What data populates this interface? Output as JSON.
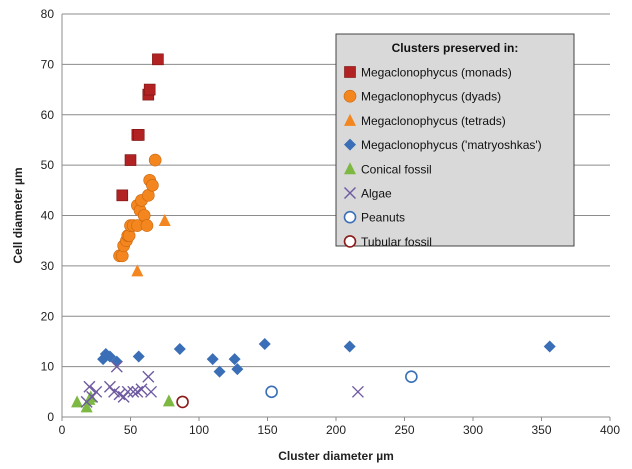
{
  "chart_data": {
    "type": "scatter",
    "xlabel": "Cluster diameter µm",
    "ylabel": "Cell diameter µm",
    "xlim": [
      0,
      400
    ],
    "ylim": [
      0,
      80
    ],
    "xticks": [
      "0",
      "50",
      "100",
      "150",
      "200",
      "250",
      "300",
      "350",
      "400"
    ],
    "yticks": [
      "0",
      "10",
      "20",
      "30",
      "40",
      "50",
      "60",
      "70",
      "80"
    ],
    "grid": "horizontal",
    "legend": {
      "title": "Clusters preserved in:",
      "placement": "top-right"
    },
    "series": [
      {
        "name": "Megaclonophycus (monads)",
        "marker": "square",
        "color": "#b22222",
        "points": [
          [
            44,
            44
          ],
          [
            50,
            51
          ],
          [
            55,
            56
          ],
          [
            56,
            56
          ],
          [
            63,
            64
          ],
          [
            64,
            65
          ],
          [
            70,
            71
          ]
        ]
      },
      {
        "name": "Megaclonophycus (dyads)",
        "marker": "circle",
        "color": "#f4861f",
        "points": [
          [
            42,
            32
          ],
          [
            44,
            32
          ],
          [
            45,
            34
          ],
          [
            47,
            35
          ],
          [
            48,
            36
          ],
          [
            49,
            36
          ],
          [
            50,
            38
          ],
          [
            52,
            38
          ],
          [
            55,
            38
          ],
          [
            55,
            42
          ],
          [
            57,
            41
          ],
          [
            58,
            43
          ],
          [
            60,
            40
          ],
          [
            62,
            38
          ],
          [
            63,
            44
          ],
          [
            64,
            47
          ],
          [
            66,
            46
          ],
          [
            68,
            51
          ]
        ]
      },
      {
        "name": "Megaclonophycus (tetrads)",
        "marker": "triangle",
        "color": "#f4861f",
        "points": [
          [
            55,
            29
          ],
          [
            75,
            39
          ]
        ]
      },
      {
        "name": "Megaclonophycus ('matryoshkas')",
        "marker": "diamond",
        "color": "#3a6fb7",
        "points": [
          [
            30,
            11.5
          ],
          [
            32,
            12.5
          ],
          [
            35,
            12
          ],
          [
            40,
            11
          ],
          [
            56,
            12
          ],
          [
            86,
            13.5
          ],
          [
            110,
            11.5
          ],
          [
            115,
            9
          ],
          [
            126,
            11.5
          ],
          [
            128,
            9.5
          ],
          [
            148,
            14.5
          ],
          [
            210,
            14
          ],
          [
            356,
            14
          ]
        ]
      },
      {
        "name": "Conical fossil",
        "marker": "triangle",
        "color": "#7db843",
        "points": [
          [
            11,
            3
          ],
          [
            18,
            2
          ],
          [
            20,
            3.5
          ],
          [
            21,
            4
          ],
          [
            78,
            3.2
          ]
        ]
      },
      {
        "name": "Algae",
        "marker": "x",
        "color": "#6e5aa0",
        "points": [
          [
            18,
            3
          ],
          [
            20,
            6
          ],
          [
            22,
            4
          ],
          [
            25,
            5
          ],
          [
            35,
            6
          ],
          [
            38,
            5
          ],
          [
            40,
            10
          ],
          [
            42,
            4.5
          ],
          [
            45,
            4
          ],
          [
            48,
            5
          ],
          [
            52,
            5
          ],
          [
            55,
            5
          ],
          [
            58,
            5.5
          ],
          [
            63,
            8
          ],
          [
            65,
            5
          ],
          [
            216,
            5
          ]
        ]
      },
      {
        "name": "Peanuts",
        "marker": "circle-open",
        "color": "#3a6fb7",
        "points": [
          [
            153,
            5
          ],
          [
            255,
            8
          ]
        ]
      },
      {
        "name": "Tubular fossil",
        "marker": "circle-open",
        "color": "#8b1a1a",
        "points": [
          [
            88,
            3
          ]
        ]
      }
    ]
  }
}
